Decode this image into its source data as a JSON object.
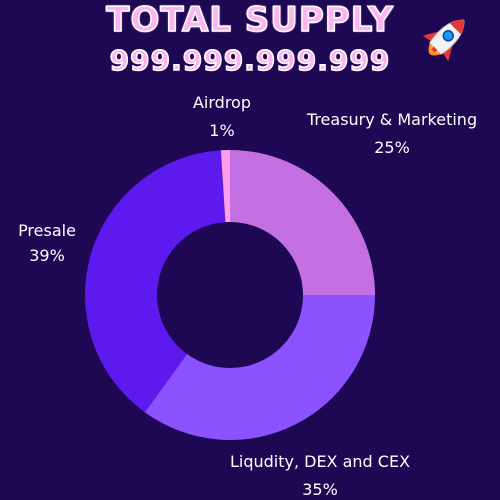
{
  "header": {
    "title": "TOTAL SUPPLY",
    "supply": "999.999.999.999"
  },
  "chart_data": {
    "type": "pie",
    "categories": [
      "Treasury & Marketing",
      "Liqudity, DEX and CEX",
      "Presale",
      "Airdrop"
    ],
    "values": [
      25,
      35,
      39,
      1
    ],
    "value_labels": [
      "25%",
      "35%",
      "39%",
      "1%"
    ],
    "colors": [
      "#c470e3",
      "#8c52ff",
      "#5c1aef",
      "#ff9fe7"
    ],
    "donut": true,
    "background": "#1e0753"
  }
}
